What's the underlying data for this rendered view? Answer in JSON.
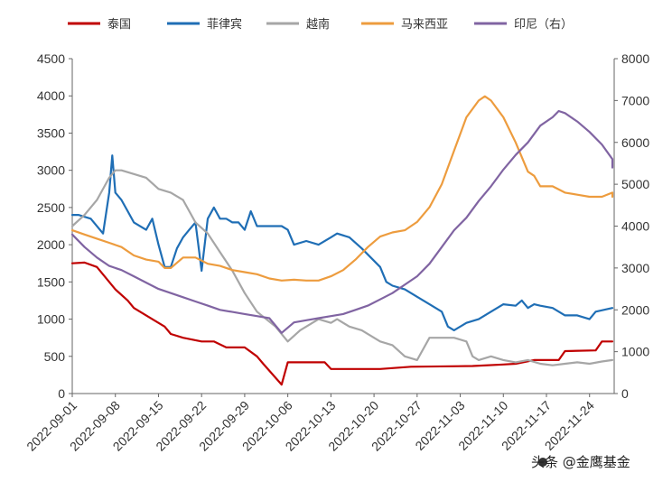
{
  "chart_data": {
    "type": "line",
    "title": "",
    "xlabel": "",
    "ylabel_left": "",
    "ylabel_right": "",
    "x_tick_labels": [
      "2022-09-01",
      "2022-09-08",
      "2022-09-15",
      "2022-09-22",
      "2022-09-29",
      "2022-10-06",
      "2022-10-13",
      "2022-10-20",
      "2022-10-27",
      "2022-11-03",
      "2022-11-10",
      "2022-11-17",
      "2022-11-24"
    ],
    "x_range": [
      0,
      88
    ],
    "ylim_left": [
      0,
      4500
    ],
    "ylim_right": [
      0,
      8000
    ],
    "y_ticks_left": [
      "0",
      "500",
      "1000",
      "1500",
      "2000",
      "2500",
      "3000",
      "3500",
      "4000",
      "4500"
    ],
    "y_ticks_right": [
      "0",
      "1000",
      "2000",
      "3000",
      "4000",
      "5000",
      "6000",
      "7000",
      "8000"
    ],
    "grid": false,
    "legend_position": "top",
    "series": [
      {
        "name": "泰国",
        "color": "#c00000",
        "axis": "left",
        "points": [
          [
            0,
            1750
          ],
          [
            2,
            1760
          ],
          [
            4,
            1700
          ],
          [
            7,
            1400
          ],
          [
            9,
            1250
          ],
          [
            10,
            1150
          ],
          [
            13,
            1000
          ],
          [
            15,
            900
          ],
          [
            16,
            800
          ],
          [
            18,
            750
          ],
          [
            21,
            700
          ],
          [
            23,
            700
          ],
          [
            25,
            620
          ],
          [
            28,
            620
          ],
          [
            30,
            500
          ],
          [
            31,
            400
          ],
          [
            34,
            120
          ],
          [
            35,
            420
          ],
          [
            38,
            420
          ],
          [
            41,
            420
          ],
          [
            42,
            330
          ],
          [
            45,
            330
          ],
          [
            50,
            330
          ],
          [
            55,
            360
          ],
          [
            65,
            370
          ],
          [
            70,
            390
          ],
          [
            72,
            400
          ],
          [
            75,
            450
          ],
          [
            79,
            450
          ],
          [
            80,
            570
          ],
          [
            85,
            580
          ],
          [
            86,
            700
          ],
          [
            88,
            700
          ]
        ]
      },
      {
        "name": "菲律宾",
        "color": "#1f6eb5",
        "axis": "left",
        "points": [
          [
            0,
            2400
          ],
          [
            1,
            2400
          ],
          [
            3,
            2350
          ],
          [
            5,
            2150
          ],
          [
            6,
            2700
          ],
          [
            6.5,
            3200
          ],
          [
            7,
            2700
          ],
          [
            8,
            2600
          ],
          [
            9,
            2450
          ],
          [
            10,
            2300
          ],
          [
            12,
            2200
          ],
          [
            13,
            2350
          ],
          [
            14,
            2000
          ],
          [
            15,
            1700
          ],
          [
            16,
            1700
          ],
          [
            17,
            1950
          ],
          [
            18,
            2100
          ],
          [
            19,
            2200
          ],
          [
            20,
            2300
          ],
          [
            21,
            1650
          ],
          [
            22,
            2350
          ],
          [
            23,
            2500
          ],
          [
            24,
            2350
          ],
          [
            25,
            2350
          ],
          [
            26,
            2300
          ],
          [
            27,
            2300
          ],
          [
            28,
            2200
          ],
          [
            29,
            2450
          ],
          [
            30,
            2250
          ],
          [
            33,
            2250
          ],
          [
            34,
            2250
          ],
          [
            35,
            2200
          ],
          [
            36,
            2000
          ],
          [
            38,
            2050
          ],
          [
            40,
            2000
          ],
          [
            42,
            2100
          ],
          [
            43,
            2150
          ],
          [
            45,
            2100
          ],
          [
            47,
            1950
          ],
          [
            50,
            1700
          ],
          [
            51,
            1500
          ],
          [
            52,
            1450
          ],
          [
            54,
            1400
          ],
          [
            56,
            1300
          ],
          [
            58,
            1200
          ],
          [
            60,
            1100
          ],
          [
            61,
            900
          ],
          [
            62,
            850
          ],
          [
            64,
            950
          ],
          [
            66,
            1000
          ],
          [
            68,
            1100
          ],
          [
            70,
            1200
          ],
          [
            72,
            1180
          ],
          [
            73,
            1250
          ],
          [
            74,
            1150
          ],
          [
            75,
            1200
          ],
          [
            76,
            1180
          ],
          [
            78,
            1150
          ],
          [
            80,
            1050
          ],
          [
            82,
            1050
          ],
          [
            84,
            1000
          ],
          [
            85,
            1100
          ],
          [
            88,
            1150
          ]
        ]
      },
      {
        "name": "越南",
        "color": "#a6a6a6",
        "axis": "left",
        "points": [
          [
            0,
            2250
          ],
          [
            2,
            2400
          ],
          [
            4,
            2600
          ],
          [
            6,
            2900
          ],
          [
            7,
            3000
          ],
          [
            8,
            3000
          ],
          [
            10,
            2950
          ],
          [
            12,
            2900
          ],
          [
            14,
            2750
          ],
          [
            16,
            2700
          ],
          [
            18,
            2600
          ],
          [
            20,
            2300
          ],
          [
            22,
            2150
          ],
          [
            24,
            1900
          ],
          [
            26,
            1650
          ],
          [
            28,
            1350
          ],
          [
            30,
            1100
          ],
          [
            33,
            900
          ],
          [
            35,
            700
          ],
          [
            37,
            850
          ],
          [
            40,
            1000
          ],
          [
            42,
            950
          ],
          [
            43,
            1000
          ],
          [
            45,
            900
          ],
          [
            47,
            850
          ],
          [
            50,
            700
          ],
          [
            52,
            650
          ],
          [
            54,
            500
          ],
          [
            56,
            450
          ],
          [
            58,
            750
          ],
          [
            60,
            750
          ],
          [
            62,
            750
          ],
          [
            64,
            700
          ],
          [
            65,
            500
          ],
          [
            66,
            450
          ],
          [
            68,
            500
          ],
          [
            70,
            450
          ],
          [
            72,
            420
          ],
          [
            74,
            450
          ],
          [
            76,
            400
          ],
          [
            78,
            380
          ],
          [
            80,
            400
          ],
          [
            82,
            420
          ],
          [
            84,
            400
          ],
          [
            86,
            430
          ],
          [
            88,
            450
          ]
        ]
      },
      {
        "name": "马来西亚",
        "color": "#ed9c3e",
        "axis": "right",
        "points": [
          [
            0,
            3900
          ],
          [
            2,
            3800
          ],
          [
            4,
            3700
          ],
          [
            6,
            3600
          ],
          [
            8,
            3500
          ],
          [
            10,
            3300
          ],
          [
            12,
            3200
          ],
          [
            14,
            3150
          ],
          [
            15,
            3000
          ],
          [
            16,
            3000
          ],
          [
            18,
            3250
          ],
          [
            20,
            3250
          ],
          [
            22,
            3100
          ],
          [
            24,
            3050
          ],
          [
            26,
            2950
          ],
          [
            28,
            2900
          ],
          [
            30,
            2850
          ],
          [
            32,
            2750
          ],
          [
            34,
            2700
          ],
          [
            36,
            2720
          ],
          [
            38,
            2700
          ],
          [
            40,
            2700
          ],
          [
            42,
            2800
          ],
          [
            44,
            2950
          ],
          [
            46,
            3200
          ],
          [
            48,
            3500
          ],
          [
            50,
            3750
          ],
          [
            52,
            3850
          ],
          [
            54,
            3900
          ],
          [
            56,
            4100
          ],
          [
            58,
            4450
          ],
          [
            60,
            5000
          ],
          [
            62,
            5800
          ],
          [
            64,
            6600
          ],
          [
            66,
            7000
          ],
          [
            67,
            7100
          ],
          [
            68,
            7000
          ],
          [
            70,
            6600
          ],
          [
            72,
            6000
          ],
          [
            74,
            5300
          ],
          [
            75,
            5200
          ],
          [
            76,
            4950
          ],
          [
            78,
            4950
          ],
          [
            80,
            4800
          ],
          [
            82,
            4750
          ],
          [
            84,
            4700
          ],
          [
            86,
            4700
          ],
          [
            88,
            4800
          ],
          [
            90,
            4700
          ]
        ]
      },
      {
        "name": "印尼（右）",
        "color": "#8064a2",
        "axis": "right",
        "points": [
          [
            0,
            3800
          ],
          [
            2,
            3500
          ],
          [
            4,
            3250
          ],
          [
            6,
            3050
          ],
          [
            8,
            2950
          ],
          [
            10,
            2800
          ],
          [
            12,
            2650
          ],
          [
            14,
            2500
          ],
          [
            16,
            2400
          ],
          [
            18,
            2300
          ],
          [
            20,
            2200
          ],
          [
            22,
            2100
          ],
          [
            24,
            2000
          ],
          [
            26,
            1950
          ],
          [
            28,
            1900
          ],
          [
            30,
            1850
          ],
          [
            32,
            1800
          ],
          [
            34,
            1450
          ],
          [
            36,
            1700
          ],
          [
            38,
            1750
          ],
          [
            40,
            1800
          ],
          [
            42,
            1850
          ],
          [
            44,
            1900
          ],
          [
            46,
            2000
          ],
          [
            48,
            2100
          ],
          [
            50,
            2250
          ],
          [
            52,
            2400
          ],
          [
            54,
            2600
          ],
          [
            56,
            2800
          ],
          [
            58,
            3100
          ],
          [
            60,
            3500
          ],
          [
            62,
            3900
          ],
          [
            64,
            4200
          ],
          [
            66,
            4600
          ],
          [
            68,
            4950
          ],
          [
            70,
            5350
          ],
          [
            72,
            5700
          ],
          [
            74,
            6000
          ],
          [
            76,
            6400
          ],
          [
            78,
            6600
          ],
          [
            79,
            6750
          ],
          [
            80,
            6700
          ],
          [
            82,
            6500
          ],
          [
            84,
            6250
          ],
          [
            86,
            5950
          ],
          [
            88,
            5600
          ],
          [
            89,
            5400
          ]
        ]
      }
    ]
  },
  "watermark": {
    "text": "头条 @金鹰基金"
  }
}
